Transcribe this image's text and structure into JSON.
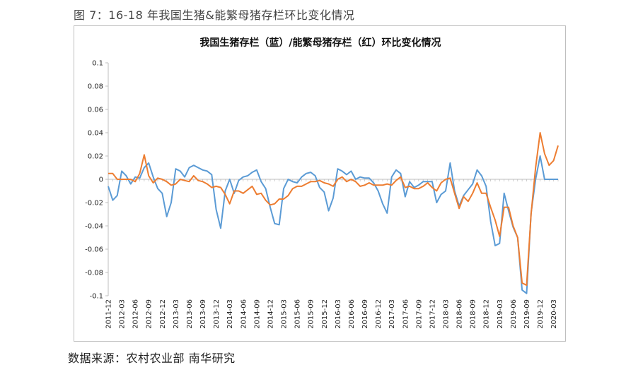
{
  "caption": "图 7：16-18 年我国生猪&能繁母猪存栏环比变化情况",
  "source": "数据来源：农村农业部  南华研究",
  "colors": {
    "pig": "#5b9bd5",
    "sow": "#ed7d31",
    "axis": "#bfbfbf"
  },
  "chart_data": {
    "type": "line",
    "title": "我国生猪存栏（蓝）/能繁母猪存栏（红）环比变化情况",
    "xlabel": "",
    "ylabel": "",
    "ylim": [
      -0.1,
      0.1
    ],
    "yticks": [
      0.1,
      0.08,
      0.06,
      0.04,
      0.02,
      0,
      -0.02,
      -0.04,
      -0.06,
      -0.08,
      -0.1
    ],
    "ytick_labels": [
      "0.1",
      "0.08",
      "0.06",
      "0.04",
      "0.02",
      "0",
      "-0.02",
      "-0.04",
      "-0.06",
      "-0.08",
      "-0.1"
    ],
    "grid": false,
    "legend": "none",
    "x_start": "2011-12",
    "x_end": "2020-03",
    "x_tick_labels": [
      "2011-12",
      "2012-03",
      "2012-06",
      "2012-09",
      "2012-12",
      "2013-03",
      "2013-06",
      "2013-09",
      "2013-12",
      "2014-03",
      "2014-06",
      "2014-09",
      "2014-12",
      "2015-03",
      "2015-06",
      "2015-09",
      "2015-12",
      "2016-03",
      "2016-06",
      "2016-09",
      "2016-12",
      "2017-03",
      "2017-06",
      "2017-09",
      "2017-12",
      "2018-03",
      "2018-06",
      "2018-09",
      "2018-12",
      "2019-03",
      "2019-06",
      "2019-09",
      "2019-12",
      "2020-03"
    ],
    "series": [
      {
        "name": "生猪存栏",
        "color": "#5b9bd5",
        "values": [
          -0.006,
          -0.018,
          -0.014,
          0.007,
          0.003,
          -0.004,
          0.002,
          0.001,
          0.01,
          0.014,
          0.002,
          -0.008,
          -0.012,
          -0.032,
          -0.02,
          0.009,
          0.007,
          0.002,
          0.01,
          0.012,
          0.01,
          0.008,
          0.007,
          0.004,
          -0.026,
          -0.042,
          -0.01,
          0.0,
          -0.012,
          -0.001,
          0.002,
          0.003,
          0.006,
          0.008,
          -0.002,
          -0.008,
          -0.024,
          -0.038,
          -0.039,
          -0.008,
          0.0,
          -0.002,
          -0.003,
          0.002,
          0.005,
          0.006,
          0.003,
          -0.007,
          -0.011,
          -0.027,
          -0.016,
          0.009,
          0.007,
          0.004,
          0.007,
          0.0,
          0.002,
          0.001,
          0.001,
          -0.003,
          -0.01,
          -0.021,
          -0.029,
          0.002,
          0.008,
          0.005,
          -0.015,
          -0.002,
          -0.007,
          -0.005,
          -0.002,
          -0.002,
          -0.002,
          -0.02,
          -0.013,
          -0.01,
          0.014,
          -0.01,
          -0.023,
          -0.014,
          -0.009,
          -0.004,
          0.008,
          0.003,
          -0.006,
          -0.036,
          -0.057,
          -0.055,
          -0.012,
          -0.027,
          -0.041,
          -0.05,
          -0.095,
          -0.098,
          -0.029,
          0.0,
          0.02,
          0.0,
          0.0,
          0.0,
          0.0
        ],
        "partial_range": [
          "2011-12",
          "2020-03"
        ]
      },
      {
        "name": "能繁母猪存栏",
        "color": "#ed7d31",
        "values": [
          0.005,
          0.005,
          0.0,
          0.0,
          0.0,
          0.0,
          -0.002,
          0.005,
          0.021,
          0.003,
          -0.003,
          0.001,
          0.0,
          -0.002,
          -0.005,
          -0.004,
          0.0,
          -0.001,
          -0.002,
          0.003,
          -0.001,
          -0.002,
          -0.004,
          -0.007,
          -0.006,
          -0.007,
          -0.013,
          -0.021,
          -0.01,
          -0.01,
          -0.012,
          -0.009,
          -0.006,
          -0.013,
          -0.012,
          -0.018,
          -0.022,
          -0.021,
          -0.017,
          -0.017,
          -0.014,
          -0.008,
          -0.006,
          -0.006,
          -0.004,
          -0.002,
          -0.002,
          -0.001,
          -0.003,
          -0.004,
          -0.006,
          0.0,
          0.002,
          -0.002,
          0.0,
          -0.002,
          -0.006,
          -0.005,
          -0.003,
          -0.005,
          -0.005,
          -0.005,
          -0.004,
          -0.005,
          -0.001,
          0.002,
          -0.007,
          -0.006,
          -0.008,
          -0.008,
          -0.006,
          -0.003,
          -0.007,
          -0.01,
          -0.003,
          0.0,
          0.001,
          -0.012,
          -0.025,
          -0.015,
          -0.019,
          -0.012,
          -0.003,
          -0.012,
          -0.012,
          -0.024,
          -0.035,
          -0.049,
          -0.024,
          -0.024,
          -0.04,
          -0.05,
          -0.089,
          -0.091,
          -0.03,
          0.01,
          0.04,
          0.022,
          0.012,
          0.016,
          0.029
        ],
        "partial_range": [
          "2011-12",
          "2020-03"
        ]
      }
    ]
  }
}
